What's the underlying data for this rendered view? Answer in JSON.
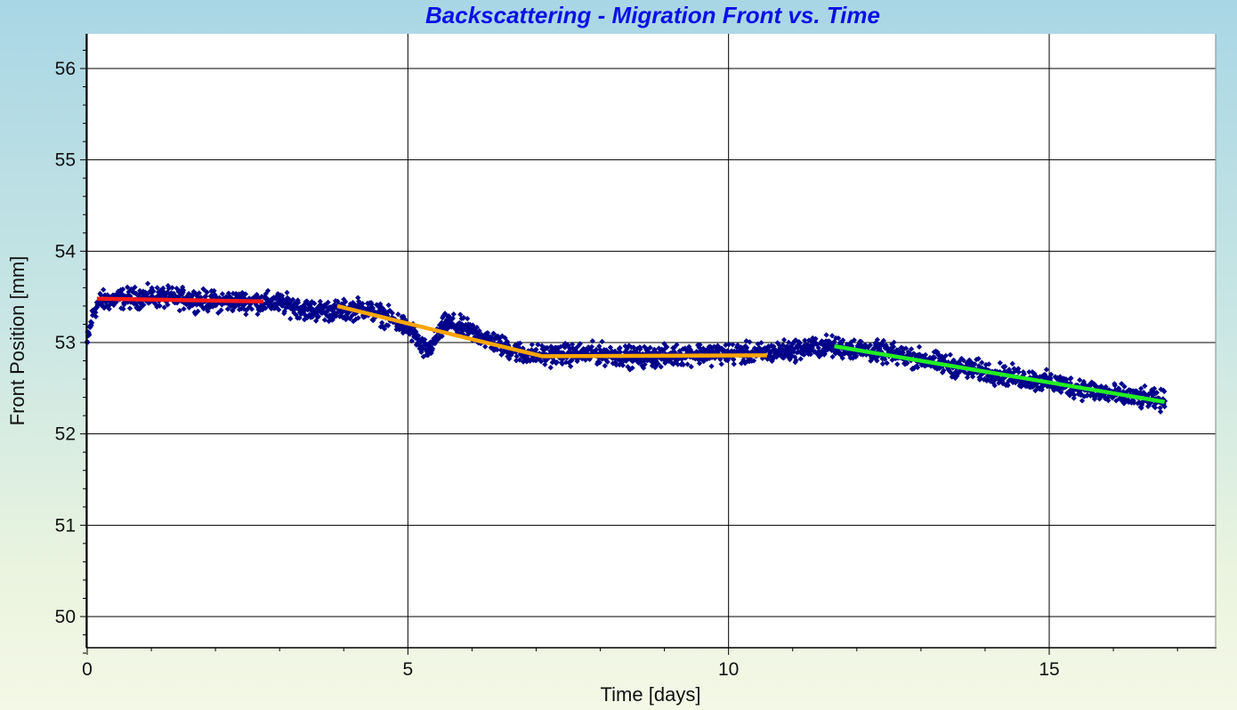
{
  "chart_data": {
    "type": "scatter",
    "title": "Backscattering - Migration Front vs. Time",
    "xlabel": "Time [days]",
    "ylabel": "Front Position [mm]",
    "xlim": [
      0,
      17.6
    ],
    "ylim": [
      49.6,
      56.4
    ],
    "x_ticks": [
      0,
      5,
      10,
      15
    ],
    "y_ticks": [
      50,
      51,
      52,
      53,
      54,
      55,
      56
    ],
    "grid": true,
    "legend": "none",
    "colors": {
      "points": "#00008b",
      "segment_1": "#ff1a1a",
      "segment_2": "#ffa500",
      "segment_3": "#22ee22"
    },
    "series": [
      {
        "type": "scatter",
        "x": [
          0.0,
          0.1,
          0.2,
          0.5,
          1.0,
          1.5,
          2.0,
          2.5,
          3.0,
          3.5,
          4.0,
          4.3,
          4.6,
          4.9,
          5.1,
          5.2,
          5.3,
          5.4,
          5.6,
          5.9,
          6.2,
          6.5,
          6.8,
          7.0,
          7.5,
          8.0,
          8.5,
          9.0,
          9.5,
          10.0,
          10.5,
          11.0,
          11.5,
          12.0,
          12.5,
          13.0,
          13.5,
          14.0,
          14.5,
          15.0,
          15.5,
          16.0,
          16.5,
          16.8
        ],
        "y": [
          53.0,
          53.35,
          53.45,
          53.48,
          53.5,
          53.48,
          53.45,
          53.45,
          53.43,
          53.35,
          53.35,
          53.38,
          53.3,
          53.2,
          53.1,
          52.95,
          52.9,
          53.0,
          53.22,
          53.15,
          53.05,
          52.95,
          52.88,
          52.86,
          52.87,
          52.88,
          52.84,
          52.85,
          52.88,
          52.88,
          52.88,
          52.92,
          52.96,
          52.93,
          52.88,
          52.82,
          52.74,
          52.68,
          52.62,
          52.56,
          52.5,
          52.43,
          52.38,
          52.36
        ]
      },
      {
        "type": "line",
        "x": [
          0.15,
          2.75
        ],
        "y": [
          53.48,
          53.45
        ]
      },
      {
        "type": "line",
        "x": [
          3.9,
          5.8,
          7.1,
          10.6
        ],
        "y": [
          53.4,
          53.07,
          52.85,
          52.86
        ]
      },
      {
        "type": "line",
        "x": [
          11.65,
          16.8
        ],
        "y": [
          52.96,
          52.35
        ]
      }
    ]
  }
}
